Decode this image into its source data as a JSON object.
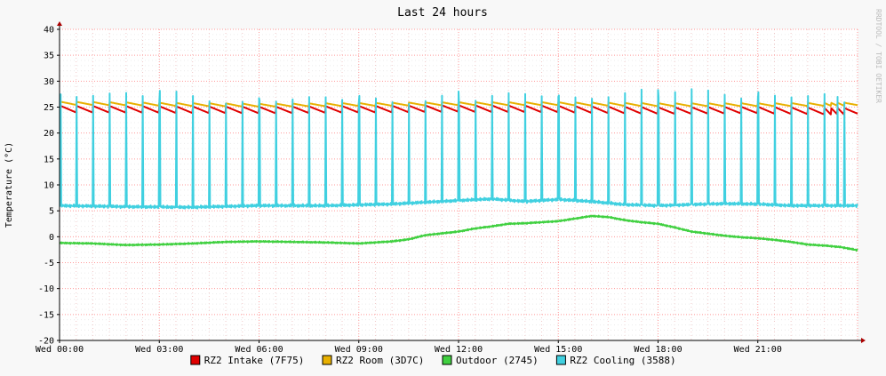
{
  "chart_data": {
    "type": "line",
    "title": "Last 24 hours",
    "ylabel": "Temperature (°C)",
    "xlabel": "",
    "watermark": "RRDTOOL / TOBI OETIKER",
    "ylim": [
      -20,
      40
    ],
    "yticks": [
      40,
      35,
      30,
      25,
      20,
      15,
      10,
      5,
      0,
      -5,
      -10,
      -15,
      -20
    ],
    "ytick_labels": [
      "40",
      "35",
      "30",
      "25",
      "20",
      "15",
      "10",
      "5",
      "0",
      "-5",
      "-10",
      "-15",
      "-20"
    ],
    "xlim_hours": [
      0,
      24
    ],
    "xticks_hours": [
      0,
      3,
      6,
      9,
      12,
      15,
      18,
      21
    ],
    "xtick_labels": [
      "Wed 00:00",
      "Wed 03:00",
      "Wed 06:00",
      "Wed 09:00",
      "Wed 12:00",
      "Wed 15:00",
      "Wed 18:00",
      "Wed 21:00"
    ],
    "grid": true,
    "legend_position": "bottom",
    "cycle_hours": [
      0.02,
      0.5,
      1.0,
      1.5,
      2.0,
      2.5,
      3.0,
      3.5,
      4.0,
      4.5,
      5.0,
      5.5,
      6.0,
      6.5,
      7.0,
      7.5,
      8.0,
      8.5,
      9.0,
      9.5,
      10.0,
      10.5,
      11.0,
      11.5,
      12.0,
      12.5,
      13.0,
      13.5,
      14.0,
      14.5,
      15.0,
      15.5,
      16.0,
      16.5,
      17.0,
      17.5,
      18.0,
      18.5,
      19.0,
      19.5,
      20.0,
      20.5,
      21.0,
      21.5,
      22.0,
      22.5,
      23.0,
      23.2,
      23.4,
      23.6
    ],
    "series": [
      {
        "name": "RZ2 Intake (7F75)",
        "color": "#e00000",
        "pattern": "sawtooth",
        "points": [
          [
            0,
            24.5
          ],
          [
            6,
            24.3
          ],
          [
            12,
            24.6
          ],
          [
            15,
            24.5
          ],
          [
            18,
            24.2
          ],
          [
            21,
            24.3
          ],
          [
            24,
            24.0
          ]
        ],
        "amplitude": 1.3
      },
      {
        "name": "RZ2 Room (3D7C)",
        "color": "#e8b000",
        "pattern": "sawtooth",
        "points": [
          [
            0,
            25.7
          ],
          [
            6,
            25.3
          ],
          [
            12,
            25.6
          ],
          [
            15,
            25.6
          ],
          [
            18,
            25.4
          ],
          [
            21,
            25.4
          ],
          [
            24,
            25.5
          ]
        ],
        "amplitude": 0.6
      },
      {
        "name": "Outdoor (2745)",
        "color": "#40d040",
        "pattern": "smooth",
        "points": [
          [
            0,
            -1.2
          ],
          [
            1,
            -1.3
          ],
          [
            2,
            -1.6
          ],
          [
            3,
            -1.5
          ],
          [
            4,
            -1.3
          ],
          [
            5,
            -1.0
          ],
          [
            6,
            -0.9
          ],
          [
            7,
            -1.0
          ],
          [
            8,
            -1.1
          ],
          [
            9,
            -1.3
          ],
          [
            10,
            -0.9
          ],
          [
            10.5,
            -0.5
          ],
          [
            11,
            0.3
          ],
          [
            12,
            1.0
          ],
          [
            12.5,
            1.6
          ],
          [
            13,
            2.0
          ],
          [
            13.5,
            2.5
          ],
          [
            14,
            2.6
          ],
          [
            14.5,
            2.8
          ],
          [
            15,
            3.0
          ],
          [
            15.5,
            3.5
          ],
          [
            16,
            4.0
          ],
          [
            16.5,
            3.8
          ],
          [
            17,
            3.2
          ],
          [
            17.5,
            2.8
          ],
          [
            18,
            2.5
          ],
          [
            18.5,
            1.8
          ],
          [
            19,
            1.0
          ],
          [
            19.5,
            0.6
          ],
          [
            20,
            0.2
          ],
          [
            20.5,
            -0.1
          ],
          [
            21,
            -0.3
          ],
          [
            21.5,
            -0.6
          ],
          [
            22,
            -1.0
          ],
          [
            22.5,
            -1.5
          ],
          [
            23,
            -1.7
          ],
          [
            23.5,
            -2.0
          ],
          [
            24,
            -2.6
          ]
        ]
      },
      {
        "name": "RZ2 Cooling (3588)",
        "color": "#40d0e0",
        "pattern": "spikes",
        "points": [
          [
            0,
            6.0
          ],
          [
            2,
            5.8
          ],
          [
            4,
            5.7
          ],
          [
            6,
            6.0
          ],
          [
            8,
            6.0
          ],
          [
            10,
            6.3
          ],
          [
            12,
            7.0
          ],
          [
            13,
            7.3
          ],
          [
            14,
            6.8
          ],
          [
            15,
            7.2
          ],
          [
            16,
            6.8
          ],
          [
            17,
            6.2
          ],
          [
            18,
            6.0
          ],
          [
            19,
            6.2
          ],
          [
            20,
            6.4
          ],
          [
            21,
            6.3
          ],
          [
            22,
            6.0
          ],
          [
            23,
            6.0
          ],
          [
            24,
            6.0
          ]
        ],
        "peak": 27
      }
    ]
  }
}
